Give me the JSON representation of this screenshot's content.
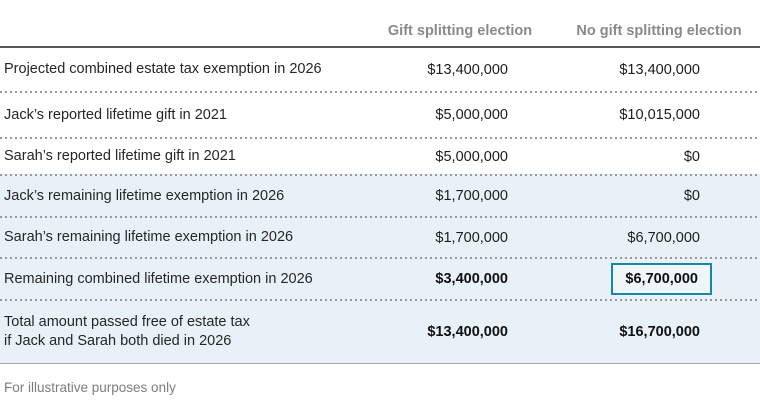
{
  "header": {
    "columns": [
      {
        "label": "Gift splitting election"
      },
      {
        "label": "No gift splitting election"
      }
    ]
  },
  "table": {
    "rows": [
      {
        "label": "Projected combined estate tax exemption in 2026",
        "gift_splitting": "$13,400,000",
        "no_gift_splitting": "$13,400,000"
      },
      {
        "label": "Jack’s reported lifetime gift in 2021",
        "gift_splitting": "$5,000,000",
        "no_gift_splitting": "$10,015,000"
      },
      {
        "label": "Sarah’s reported lifetime gift in 2021",
        "gift_splitting": "$5,000,000",
        "no_gift_splitting": "$0"
      },
      {
        "label": "Jack’s remaining lifetime exemption in 2026",
        "gift_splitting": "$1,700,000",
        "no_gift_splitting": "$0"
      },
      {
        "label": "Sarah’s remaining lifetime exemption in 2026",
        "gift_splitting": "$1,700,000",
        "no_gift_splitting": "$6,700,000"
      },
      {
        "label": "Remaining combined lifetime exemption in 2026",
        "gift_splitting": "$3,400,000",
        "no_gift_splitting": "$6,700,000"
      },
      {
        "label": "Total amount passed free of estate tax",
        "label_line2": "if Jack and Sarah both died in 2026",
        "gift_splitting": "$13,400,000",
        "no_gift_splitting": "$16,700,000"
      }
    ]
  },
  "footer": {
    "note": "For illustrative purposes only"
  },
  "colors": {
    "highlight_section_bg": "#e9f1f8",
    "highlight_box_border": "#1687a6",
    "header_text": "#8a8a8a",
    "top_rule": "#595a5c",
    "bottom_rule": "#a8a8a8",
    "dotted_separator": "#98989d"
  },
  "chart_data": {
    "type": "table",
    "title": "",
    "columns": [
      "",
      "Gift splitting election",
      "No gift splitting election"
    ],
    "rows": [
      [
        "Projected combined estate tax exemption in 2026",
        13400000,
        13400000
      ],
      [
        "Jack’s reported lifetime gift in 2021",
        5000000,
        10015000
      ],
      [
        "Sarah’s reported lifetime gift in 2021",
        5000000,
        0
      ],
      [
        "Jack’s remaining lifetime exemption in 2026",
        1700000,
        0
      ],
      [
        "Sarah’s remaining lifetime exemption in 2026",
        1700000,
        6700000
      ],
      [
        "Remaining combined lifetime exemption in 2026",
        3400000,
        6700000
      ],
      [
        "Total amount passed free of estate tax if Jack and Sarah both died in 2026",
        13400000,
        16700000
      ]
    ],
    "highlighted_cell": {
      "row": 5,
      "column": "No gift splitting election",
      "value": 6700000
    },
    "footnote": "For illustrative purposes only"
  }
}
